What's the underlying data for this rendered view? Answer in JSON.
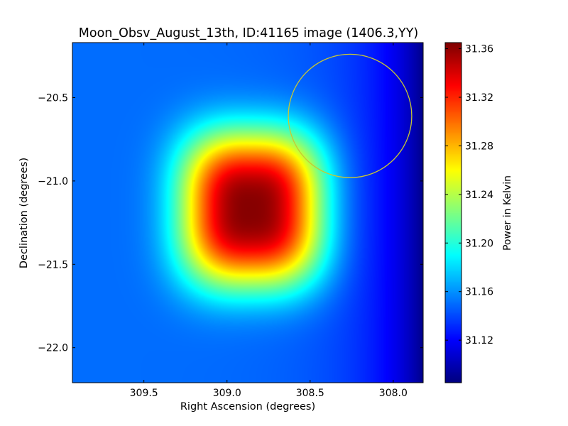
{
  "chart_data": {
    "type": "heatmap",
    "title": "Moon_Obsv_August_13th, ID:41165 image (1406.3,YY)",
    "xlabel": "Right Ascension (degrees)",
    "ylabel": "Declination (degrees)",
    "colorbar_label": "Power in Kelvin",
    "colormap": "jet",
    "x_axis_inverted": true,
    "xlim": [
      309.93,
      307.82
    ],
    "ylim": [
      -22.21,
      -20.17
    ],
    "x_ticks": [
      309.5,
      309.0,
      308.5,
      308.0
    ],
    "x_tick_labels": [
      "309.5",
      "309.0",
      "308.5",
      "308.0"
    ],
    "y_ticks": [
      -20.5,
      -21.0,
      -21.5,
      -22.0
    ],
    "y_tick_labels": [
      "−20.5",
      "−21.0",
      "−21.5",
      "−22.0"
    ],
    "colorbar_range": [
      31.085,
      31.365
    ],
    "colorbar_ticks": [
      31.12,
      31.16,
      31.2,
      31.24,
      31.28,
      31.32,
      31.36
    ],
    "colorbar_tick_labels": [
      "31.12",
      "31.16",
      "31.20",
      "31.24",
      "31.28",
      "31.32",
      "31.36"
    ],
    "field": {
      "background": 31.15,
      "peak_center": [
        308.85,
        -21.17
      ],
      "peak_value": 31.365,
      "peak_sigma_ra": 0.33,
      "peak_sigma_dec": 0.36,
      "cold_edge_ra": 307.82,
      "cold_edge_value": 31.088,
      "cold_edge_width": 0.3
    },
    "circle": {
      "center": [
        308.26,
        -20.61
      ],
      "radius_deg": 0.37,
      "color": "#c8c832"
    }
  }
}
